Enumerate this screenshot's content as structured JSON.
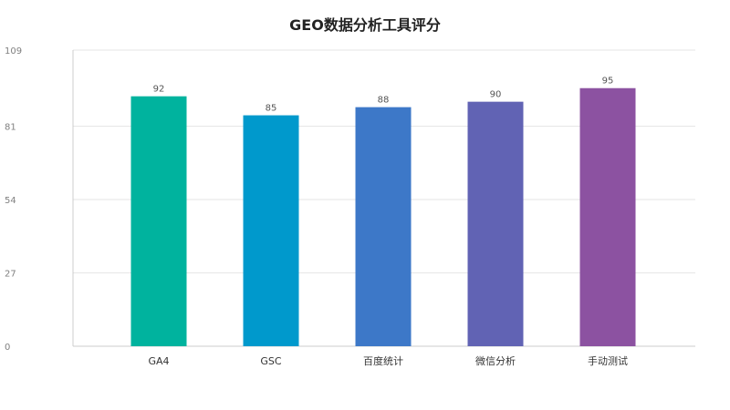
{
  "chart_data": {
    "type": "bar",
    "title": "GEO数据分析工具评分",
    "categories": [
      "GA4",
      "GSC",
      "百度统计",
      "微信分析",
      "手动测试"
    ],
    "values": [
      92,
      85,
      88,
      90,
      95
    ],
    "colors": [
      "#00b39e",
      "#0099cc",
      "#3d78c8",
      "#6163b4",
      "#8c52a1"
    ],
    "ylim": [
      0,
      109
    ],
    "yticks": [
      0,
      27,
      54,
      81,
      109
    ],
    "xlabel": "",
    "ylabel": "",
    "grid": true,
    "data_labels": true
  }
}
